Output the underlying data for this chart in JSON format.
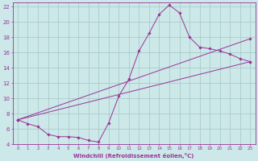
{
  "xlabel": "Windchill (Refroidissement éolien,°C)",
  "bg_color": "#cce8e8",
  "grid_color": "#aacccc",
  "line_color": "#993399",
  "xlim": [
    -0.5,
    23.5
  ],
  "ylim": [
    4,
    22.5
  ],
  "xticks": [
    0,
    1,
    2,
    3,
    4,
    5,
    6,
    7,
    8,
    9,
    10,
    11,
    12,
    13,
    14,
    15,
    16,
    17,
    18,
    19,
    20,
    21,
    22,
    23
  ],
  "yticks": [
    4,
    6,
    8,
    10,
    12,
    14,
    16,
    18,
    20,
    22
  ],
  "line1_x": [
    0,
    1,
    2,
    3,
    4,
    5,
    6,
    7,
    8,
    9,
    10,
    11,
    12,
    13,
    14,
    15,
    16,
    17,
    18,
    19,
    20,
    21,
    22,
    23
  ],
  "line1_y": [
    7.2,
    6.7,
    6.3,
    5.3,
    5.0,
    5.0,
    4.9,
    4.5,
    4.3,
    6.8,
    10.3,
    12.5,
    16.2,
    18.5,
    21.0,
    22.2,
    21.2,
    18.0,
    16.7,
    16.5,
    16.2,
    15.8,
    15.2,
    14.8
  ],
  "line2_x": [
    0,
    23
  ],
  "line2_y": [
    7.2,
    17.8
  ],
  "line3_x": [
    0,
    23
  ],
  "line3_y": [
    7.2,
    14.8
  ],
  "marker_x": [
    0,
    1,
    2,
    3,
    4,
    5,
    6,
    7,
    8,
    9,
    10,
    11,
    12,
    13,
    14,
    15,
    16,
    17,
    18,
    19,
    20,
    21,
    22,
    23
  ],
  "marker1_y": [
    7.2,
    6.7,
    6.3,
    5.3,
    5.0,
    5.0,
    4.9,
    4.5,
    4.3,
    6.8,
    10.3,
    12.5,
    16.2,
    18.5,
    21.0,
    22.2,
    21.2,
    18.0,
    16.7,
    16.5,
    16.2,
    15.8,
    15.2,
    14.8
  ]
}
